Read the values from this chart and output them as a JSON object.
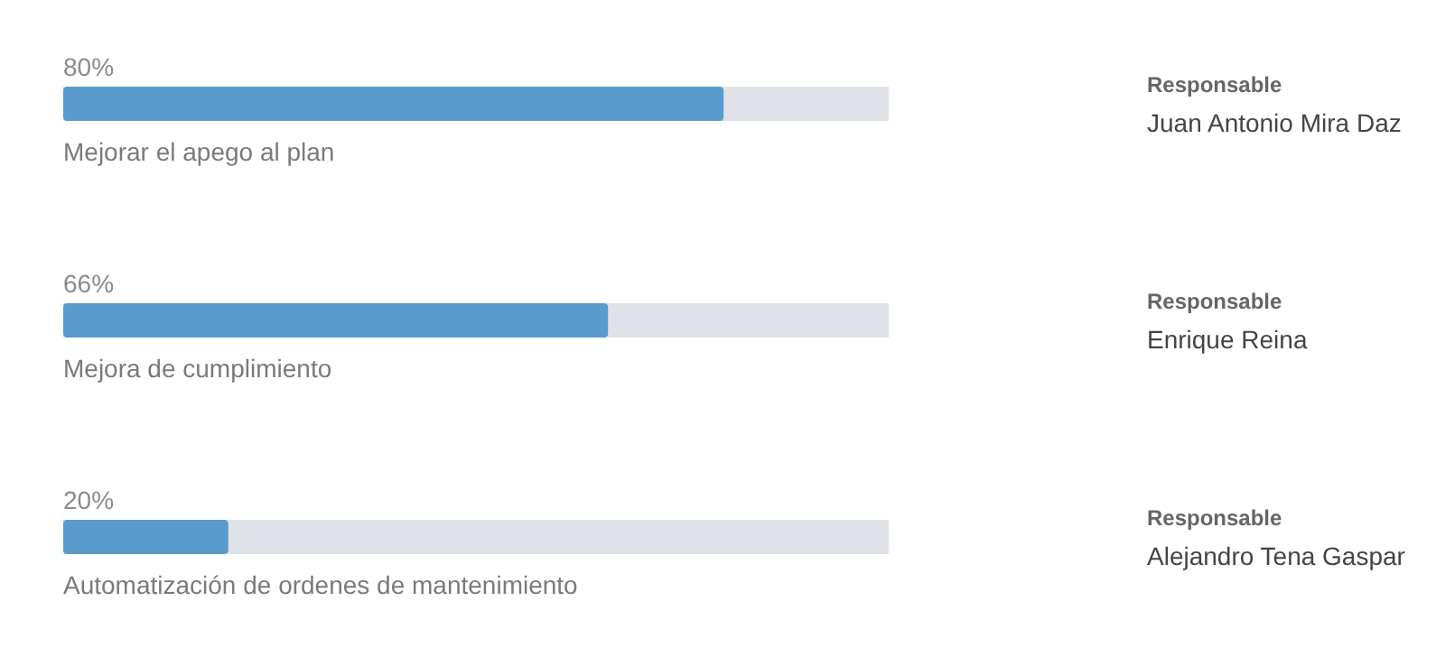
{
  "chart_data": {
    "type": "bar",
    "orientation": "horizontal",
    "categories": [
      "Mejorar el apego al plan",
      "Mejora de cumplimiento",
      "Automatización de ordenes de mantenimiento"
    ],
    "values": [
      80,
      66,
      20
    ],
    "value_labels": [
      "80%",
      "66%",
      "20%"
    ],
    "color": "#5a9bcd",
    "xlim": [
      0,
      100
    ],
    "tick_labels": false,
    "annotations": [
      "Responsable",
      "Juan Antonio Mira Daz",
      "Responsable",
      "Enrique Reina",
      "Responsable",
      "Alejandro Tena Gaspar"
    ]
  }
}
